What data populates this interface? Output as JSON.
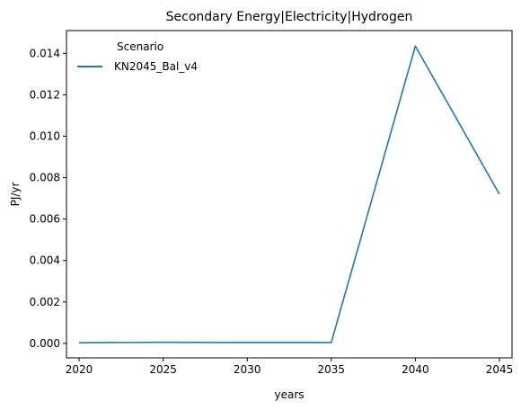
{
  "chart_data": {
    "type": "line",
    "title": "Secondary Energy|Electricity|Hydrogen",
    "xlabel": "years",
    "ylabel": "PJ/yr",
    "x": [
      2020,
      2025,
      2030,
      2035,
      2040,
      2045
    ],
    "xticks": [
      "2020",
      "2025",
      "2030",
      "2035",
      "2040",
      "2045"
    ],
    "yticks": [
      "0.000",
      "0.002",
      "0.004",
      "0.006",
      "0.008",
      "0.010",
      "0.012",
      "0.014"
    ],
    "xlim": [
      2019.25,
      2045.75
    ],
    "ylim": [
      -0.0007,
      0.0151
    ],
    "grid": false,
    "legend": {
      "title": "Scenario",
      "position": "top-left"
    },
    "series": [
      {
        "name": "KN2045_Bal_v4",
        "color": "#1f77b4",
        "values": [
          3e-05,
          5e-05,
          4e-05,
          4e-05,
          0.01435,
          0.0072
        ]
      }
    ]
  }
}
